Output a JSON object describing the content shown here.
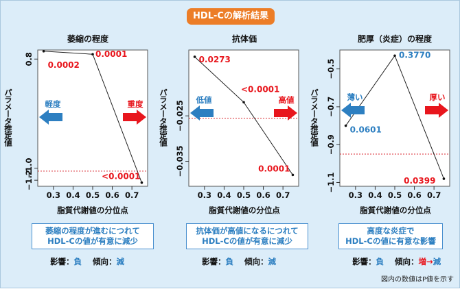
{
  "header": {
    "title": "HDL-Cの解析結果"
  },
  "footnote": "図内の数値はP値を示す",
  "colors": {
    "banner": "#ec7d27",
    "blue": "#2d7fc1",
    "red": "#e8161d",
    "threshold": "#d9262c"
  },
  "panels": [
    {
      "title": "萎縮の程度",
      "ylabel": "パラメータ推定値",
      "xlabel": "脂質代謝値の分位点",
      "arrow_left": "軽度",
      "arrow_right": "重度",
      "box_line1": "萎縮の程度が進むにつれて",
      "box_line2": "HDL-Cの値が有意に減少",
      "effect_label": "影響：",
      "effect_value": "負",
      "trend_label": "傾向：",
      "trend_value": "減",
      "trend_value_prefix": ""
    },
    {
      "title": "抗体価",
      "ylabel": "パラメータ推定値",
      "xlabel": "脂質代謝値の分位点",
      "arrow_left": "低値",
      "arrow_right": "高値",
      "box_line1": "抗体価が高値になるにつれて",
      "box_line2": "HDL-Cの値が有意に減少",
      "effect_label": "影響：",
      "effect_value": "負",
      "trend_label": "傾向：",
      "trend_value": "減",
      "trend_value_prefix": ""
    },
    {
      "title": "肥厚（炎症）の程度",
      "ylabel": "パラメータ推定値",
      "xlabel": "脂質代謝値の分位点",
      "arrow_left": "薄い",
      "arrow_right": "厚い",
      "box_line1": "高度な炎症で",
      "box_line2": "HDL-Cの値に有意な影響",
      "effect_label": "影響：",
      "effect_value": "負",
      "trend_label": "傾向：",
      "trend_value": "減",
      "trend_value_prefix": "増→"
    }
  ],
  "chart_data": [
    {
      "type": "line",
      "title": "萎縮の程度",
      "xlabel": "脂質代謝値の分位点",
      "ylabel": "パラメータ推定値",
      "x": [
        0.25,
        0.5,
        0.75
      ],
      "y": [
        0.93,
        0.88,
        -1.24
      ],
      "p_labels": [
        "0.0002",
        "0.0001",
        "<0.0001"
      ],
      "p_label_colors": [
        "#e8161d",
        "#e8161d",
        "#e8161d"
      ],
      "xlim": [
        0.22,
        0.78
      ],
      "ylim": [
        -1.3,
        0.95
      ],
      "xticks": [
        0.3,
        0.4,
        0.5,
        0.6,
        0.7
      ],
      "yticks": [
        0.8,
        -1.0,
        -1.2
      ],
      "ytick_labels": [
        "0.8",
        "−1.0",
        "−1.2"
      ],
      "threshold_y": -1.05
    },
    {
      "type": "line",
      "title": "抗体価",
      "xlabel": "脂質代謝値の分位点",
      "ylabel": "パラメータ推定値",
      "x": [
        0.25,
        0.5,
        0.75
      ],
      "y": [
        -0.012,
        -0.022,
        -0.038
      ],
      "p_labels": [
        "0.0273",
        "<0.0001",
        "0.0001"
      ],
      "p_label_colors": [
        "#e8161d",
        "#e8161d",
        "#e8161d"
      ],
      "xlim": [
        0.22,
        0.78
      ],
      "ylim": [
        -0.0405,
        -0.0105
      ],
      "xticks": [
        0.3,
        0.4,
        0.5,
        0.6,
        0.7
      ],
      "yticks": [
        -0.025,
        -0.035
      ],
      "ytick_labels": [
        "−0.025",
        "−0.035"
      ],
      "threshold_y": -0.0255
    },
    {
      "type": "line",
      "title": "肥厚（炎症）の程度",
      "xlabel": "脂質代謝値の分位点",
      "ylabel": "パラメータ推定値",
      "x": [
        0.25,
        0.5,
        0.75
      ],
      "y": [
        -0.8,
        -0.43,
        -1.08
      ],
      "p_labels": [
        "0.0601",
        "0.3770",
        "0.0399"
      ],
      "p_label_colors": [
        "#2d7fc1",
        "#2d7fc1",
        "#e8161d"
      ],
      "xlim": [
        0.22,
        0.78
      ],
      "ylim": [
        -1.12,
        -0.4
      ],
      "xticks": [
        0.3,
        0.4,
        0.5,
        0.6,
        0.7
      ],
      "yticks": [
        -0.5,
        -0.7,
        -0.9,
        -1.1
      ],
      "ytick_labels": [
        "−0.5",
        "−0.7",
        "−0.9",
        "−1.1"
      ],
      "threshold_y": -0.95
    }
  ]
}
